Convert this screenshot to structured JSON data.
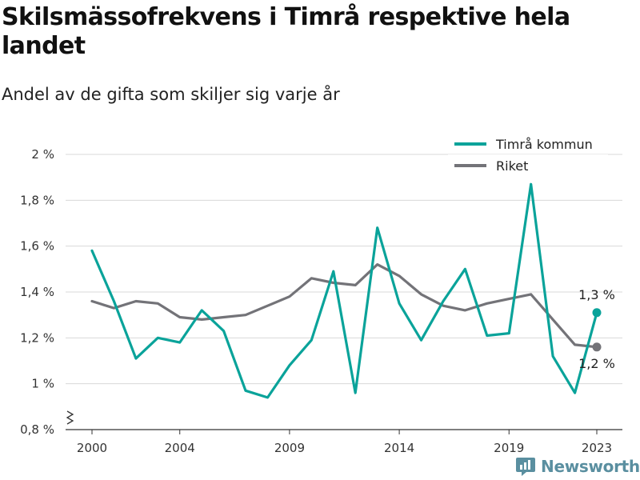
{
  "title": "Skilsmässofrekvens i Timrå respektive hela landet",
  "subtitle": "Andel av de gifta som skiljer sig varje år",
  "brand": "Newsworthy",
  "colors": {
    "timra": "#0aa39a",
    "riket": "#737378",
    "grid": "#d8d8d8",
    "axis": "#333333"
  },
  "chart_data": {
    "type": "line",
    "title": "Skilsmässofrekvens i Timrå respektive hela landet",
    "subtitle": "Andel av de gifta som skiljer sig varje år",
    "xlabel": "",
    "ylabel": "",
    "x": [
      2000,
      2001,
      2002,
      2003,
      2004,
      2005,
      2006,
      2007,
      2008,
      2009,
      2010,
      2011,
      2012,
      2013,
      2014,
      2015,
      2016,
      2017,
      2018,
      2019,
      2020,
      2021,
      2022,
      2023
    ],
    "x_ticks": [
      2000,
      2004,
      2009,
      2014,
      2019,
      2023
    ],
    "x_tick_labels": [
      "2000",
      "2004",
      "2009",
      "2014",
      "2019",
      "2023"
    ],
    "ylim": [
      0.8,
      2.0
    ],
    "y_ticks": [
      0.8,
      1.0,
      1.2,
      1.4,
      1.6,
      1.8,
      2.0
    ],
    "y_tick_labels": [
      "0,8 %",
      "1 %",
      "1,2 %",
      "1,4 %",
      "1,6 %",
      "1,8 %",
      "2 %"
    ],
    "y_axis_break": true,
    "grid": true,
    "legend_position": "top-right",
    "series": [
      {
        "name": "Timrå kommun",
        "color": "#0aa39a",
        "values": [
          1.58,
          1.36,
          1.11,
          1.2,
          1.18,
          1.32,
          1.23,
          0.97,
          0.94,
          1.08,
          1.19,
          1.49,
          0.96,
          1.68,
          1.35,
          1.19,
          1.36,
          1.5,
          1.21,
          1.22,
          1.87,
          1.12,
          0.96,
          1.31
        ],
        "end_label": "1,3 %"
      },
      {
        "name": "Riket",
        "color": "#737378",
        "values": [
          1.36,
          1.33,
          1.36,
          1.35,
          1.29,
          1.28,
          1.29,
          1.3,
          1.34,
          1.38,
          1.46,
          1.44,
          1.43,
          1.52,
          1.47,
          1.39,
          1.34,
          1.32,
          1.35,
          1.37,
          1.39,
          1.28,
          1.17,
          1.16
        ],
        "end_label": "1,2 %"
      }
    ]
  }
}
